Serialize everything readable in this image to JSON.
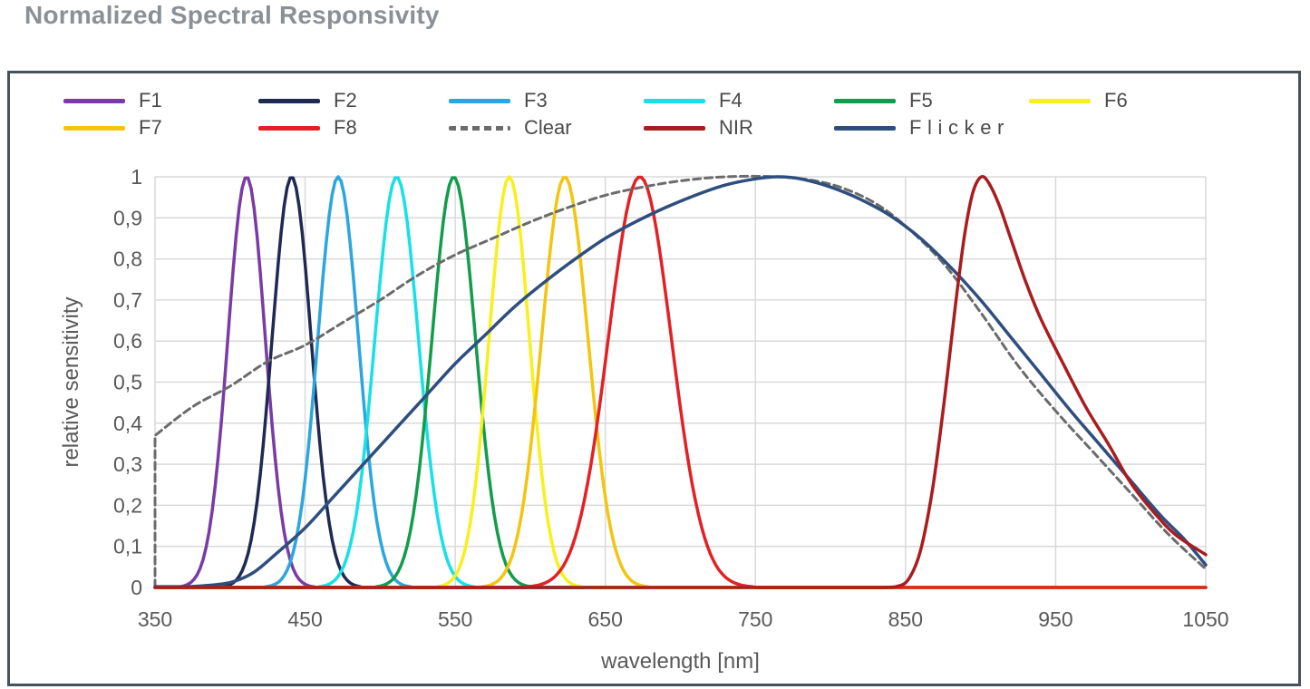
{
  "title": "Normalized Spectral Responsivity",
  "axes": {
    "x": {
      "label": "wavelength [nm]",
      "ticks": [
        "350",
        "450",
        "550",
        "650",
        "750",
        "850",
        "950",
        "1050"
      ],
      "min": 350,
      "max": 1050,
      "step": 100
    },
    "y": {
      "label": "relative sensitivity",
      "ticks": [
        "1",
        "0,9",
        "0,8",
        "0,7",
        "0,6",
        "0,5",
        "0,4",
        "0,3",
        "0,2",
        "0,1",
        "0"
      ],
      "min": 0,
      "max": 1,
      "step": 0.1
    }
  },
  "chart_data": {
    "type": "line",
    "title": "Normalized Spectral Responsivity",
    "xlabel": "wavelength [nm]",
    "ylabel": "relative sensitivity",
    "xlim": [
      350,
      1050
    ],
    "ylim": [
      0,
      1
    ],
    "x_gridstep": 100,
    "y_gridstep": 0.1,
    "grid": true,
    "legend_position": "top",
    "style": {
      "grid_color": "#D9D9D9",
      "tick_color": "#595959",
      "frame_color": "#48525B",
      "title_color": "#8A9096"
    },
    "series": [
      {
        "name": "F1",
        "color": "#7A3BA5",
        "model": "gaussian",
        "peak": 411,
        "sigma": 12.5,
        "width": 3.5
      },
      {
        "name": "F2",
        "color": "#1F2A54",
        "model": "gaussian",
        "peak": 441,
        "sigma": 13,
        "width": 3.5
      },
      {
        "name": "F3",
        "color": "#2BA6DF",
        "model": "gaussian",
        "peak": 472,
        "sigma": 13.5,
        "width": 3.5
      },
      {
        "name": "F4",
        "color": "#17E0E6",
        "model": "gaussian",
        "peak": 511,
        "sigma": 14.5,
        "width": 3.5
      },
      {
        "name": "F5",
        "color": "#129C4B",
        "model": "gaussian",
        "peak": 549,
        "sigma": 14.5,
        "width": 3.5
      },
      {
        "name": "F6",
        "color": "#F7F01D",
        "model": "gaussian",
        "peak": 586,
        "sigma": 13.5,
        "width": 3.5
      },
      {
        "name": "F7",
        "color": "#F3C50F",
        "model": "gaussian",
        "peak": 623,
        "sigma": 15.5,
        "width": 3.5
      },
      {
        "name": "F8",
        "color": "#E32125",
        "model": "gaussian",
        "peak": 673,
        "sigma": 21,
        "width": 3.5
      },
      {
        "name": "Clear",
        "color": "#6B6B6B",
        "model": "points",
        "dash": "8 5",
        "width": 3,
        "vertical_start": true,
        "points": [
          [
            350,
            0
          ],
          [
            350,
            0.37
          ],
          [
            375,
            0.44
          ],
          [
            400,
            0.49
          ],
          [
            425,
            0.55
          ],
          [
            450,
            0.59
          ],
          [
            475,
            0.645
          ],
          [
            500,
            0.7
          ],
          [
            525,
            0.76
          ],
          [
            550,
            0.81
          ],
          [
            575,
            0.85
          ],
          [
            600,
            0.89
          ],
          [
            625,
            0.925
          ],
          [
            650,
            0.955
          ],
          [
            675,
            0.975
          ],
          [
            700,
            0.99
          ],
          [
            730,
            1.0
          ],
          [
            765,
            1.0
          ],
          [
            790,
            0.99
          ],
          [
            810,
            0.97
          ],
          [
            830,
            0.935
          ],
          [
            850,
            0.88
          ],
          [
            875,
            0.79
          ],
          [
            900,
            0.67
          ],
          [
            925,
            0.54
          ],
          [
            950,
            0.43
          ],
          [
            975,
            0.33
          ],
          [
            1000,
            0.23
          ],
          [
            1025,
            0.13
          ],
          [
            1050,
            0.045
          ]
        ]
      },
      {
        "name": "NIR",
        "color": "#A91C1F",
        "model": "points",
        "width": 3.5,
        "points": [
          [
            350,
            0
          ],
          [
            500,
            0
          ],
          [
            650,
            0
          ],
          [
            780,
            0
          ],
          [
            820,
            0
          ],
          [
            836,
            0
          ],
          [
            844,
            0.002
          ],
          [
            852,
            0.02
          ],
          [
            860,
            0.09
          ],
          [
            868,
            0.24
          ],
          [
            876,
            0.46
          ],
          [
            883,
            0.68
          ],
          [
            889,
            0.85
          ],
          [
            894,
            0.95
          ],
          [
            898,
            0.99
          ],
          [
            902,
            1.0
          ],
          [
            907,
            0.975
          ],
          [
            913,
            0.925
          ],
          [
            921,
            0.84
          ],
          [
            930,
            0.745
          ],
          [
            940,
            0.655
          ],
          [
            955,
            0.545
          ],
          [
            970,
            0.44
          ],
          [
            985,
            0.35
          ],
          [
            1000,
            0.255
          ],
          [
            1015,
            0.185
          ],
          [
            1030,
            0.128
          ],
          [
            1050,
            0.08
          ]
        ]
      },
      {
        "name": "Flicker",
        "color": "#2E4E7E",
        "model": "points",
        "width": 3.5,
        "points": [
          [
            350,
            0.002
          ],
          [
            370,
            0.002
          ],
          [
            385,
            0.005
          ],
          [
            400,
            0.012
          ],
          [
            415,
            0.035
          ],
          [
            430,
            0.08
          ],
          [
            450,
            0.145
          ],
          [
            470,
            0.225
          ],
          [
            490,
            0.305
          ],
          [
            510,
            0.385
          ],
          [
            530,
            0.465
          ],
          [
            550,
            0.545
          ],
          [
            570,
            0.615
          ],
          [
            590,
            0.685
          ],
          [
            610,
            0.745
          ],
          [
            630,
            0.8
          ],
          [
            650,
            0.85
          ],
          [
            670,
            0.89
          ],
          [
            690,
            0.925
          ],
          [
            710,
            0.955
          ],
          [
            730,
            0.98
          ],
          [
            750,
            0.995
          ],
          [
            765,
            1.0
          ],
          [
            780,
            0.995
          ],
          [
            800,
            0.975
          ],
          [
            820,
            0.945
          ],
          [
            840,
            0.905
          ],
          [
            860,
            0.85
          ],
          [
            880,
            0.78
          ],
          [
            900,
            0.7
          ],
          [
            920,
            0.61
          ],
          [
            940,
            0.52
          ],
          [
            960,
            0.43
          ],
          [
            980,
            0.345
          ],
          [
            1000,
            0.26
          ],
          [
            1020,
            0.175
          ],
          [
            1035,
            0.12
          ],
          [
            1050,
            0.055
          ]
        ]
      }
    ],
    "draw_order": [
      "F1",
      "F2",
      "F3",
      "F4",
      "F5",
      "F6",
      "F7",
      "F8",
      "Clear",
      "Flicker",
      "NIR"
    ],
    "legend_order": [
      "F1",
      "F2",
      "F3",
      "F4",
      "F5",
      "F6",
      "F7",
      "F8",
      "Clear",
      "NIR",
      "Flicker"
    ]
  }
}
